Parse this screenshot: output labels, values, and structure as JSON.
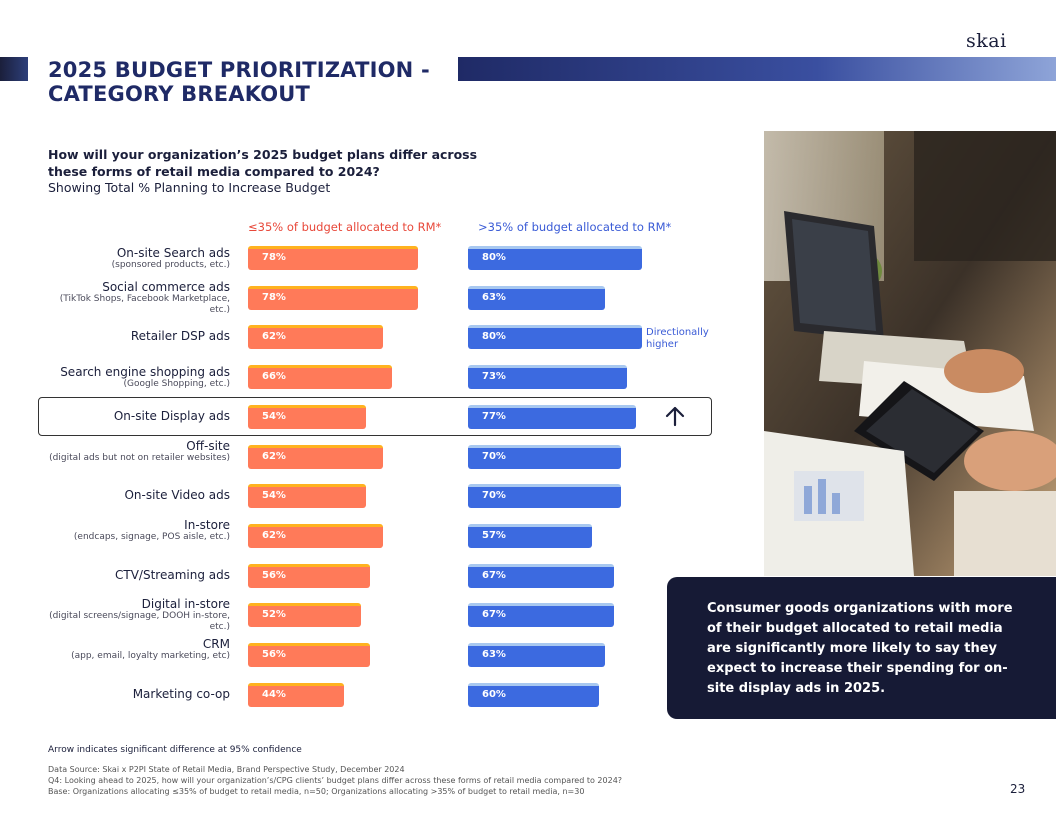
{
  "brand": {
    "logo": "skai"
  },
  "title": "2025 BUDGET PRIORITIZATION - CATEGORY BREAKOUT",
  "question": "How will your organization’s 2025 budget plans differ across these forms of retail media compared to 2024?",
  "subquestion": "Showing Total % Planning to Increase Budget",
  "chart_data": {
    "type": "bar",
    "orientation": "horizontal",
    "title": "How will your organization’s 2025 budget plans differ across these forms of retail media compared to 2024?",
    "subtitle": "Showing Total % Planning to Increase Budget",
    "value_suffix": "%",
    "xlim": [
      0,
      100
    ],
    "categories": [
      {
        "label": "On-site Search ads",
        "sub": "(sponsored products, etc.)"
      },
      {
        "label": "Social commerce ads",
        "sub": "(TikTok Shops, Facebook Marketplace, etc.)"
      },
      {
        "label": "Retailer DSP ads",
        "sub": ""
      },
      {
        "label": "Search engine shopping ads",
        "sub": "(Google Shopping, etc.)"
      },
      {
        "label": "On-site Display ads",
        "sub": ""
      },
      {
        "label": "Off-site",
        "sub": "(digital ads but not on retailer websites)"
      },
      {
        "label": "On-site Video ads",
        "sub": ""
      },
      {
        "label": "In-store",
        "sub": "(endcaps, signage, POS aisle, etc.)"
      },
      {
        "label": "CTV/Streaming ads",
        "sub": ""
      },
      {
        "label": "Digital in-store",
        "sub": "(digital screens/signage, DOOH in-store, etc.)"
      },
      {
        "label": "CRM",
        "sub": "(app, email, loyalty marketing, etc)"
      },
      {
        "label": "Marketing co-op",
        "sub": ""
      }
    ],
    "series": [
      {
        "name": "≤35% of budget allocated to RM*",
        "color": "#ff7a59",
        "values": [
          78,
          78,
          62,
          66,
          54,
          62,
          54,
          62,
          56,
          52,
          56,
          44
        ]
      },
      {
        "name": ">35% of budget allocated to RM*",
        "color": "#3c6ae0",
        "values": [
          80,
          63,
          80,
          73,
          77,
          70,
          70,
          57,
          67,
          67,
          63,
          60
        ]
      }
    ],
    "annotations": {
      "directional_note": "Directionally higher",
      "directional_index": 2,
      "significant_index": 4
    }
  },
  "callout": "Consumer goods organizations with more of their budget allocated to retail media are significantly more likely to say they expect to increase their spending for on-site display ads in 2025.",
  "footer": {
    "note": "Arrow indicates significant difference at 95% confidence",
    "source": "Data Source: Skai x P2PI State of Retail Media, Brand Perspective Study, December 2024",
    "q4": "Q4: Looking ahead to 2025, how will your organization’s/CPG clients’ budget plans differ across these forms of retail media compared to 2024?",
    "base": "Base:  Organizations allocating ≤35% of budget to retail media, n=50; Organizations allocating >35% of budget to retail media, n=30"
  },
  "page_number": "23"
}
